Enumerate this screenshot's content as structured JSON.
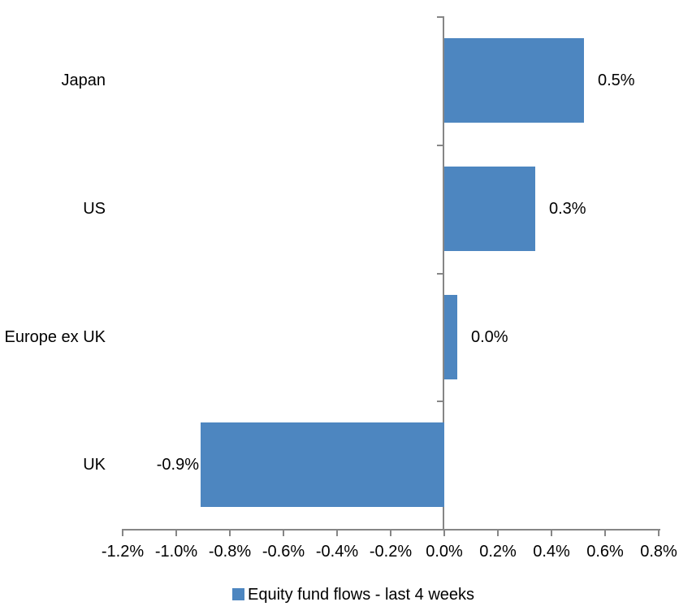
{
  "chart_data": {
    "type": "bar",
    "orientation": "horizontal",
    "title": "",
    "categories": [
      "Japan",
      "US",
      "Europe ex UK",
      "UK"
    ],
    "values": [
      0.5,
      0.3,
      0.0,
      -0.9
    ],
    "value_labels": [
      "0.5%",
      "0.3%",
      "0.0%",
      "-0.9%"
    ],
    "render_values": [
      0.52,
      0.34,
      0.048,
      -0.91
    ],
    "series": [
      {
        "name": "Equity fund flows - last 4 weeks",
        "values": [
          0.5,
          0.3,
          0.0,
          -0.9
        ]
      }
    ],
    "xlim": [
      -1.2,
      0.8
    ],
    "x_tick_values": [
      -1.2,
      -1.0,
      -0.8,
      -0.6,
      -0.4,
      -0.2,
      0.0,
      0.2,
      0.4,
      0.6,
      0.8
    ],
    "x_tick_labels": [
      "-1.2%",
      "-1.0%",
      "-0.8%",
      "-0.6%",
      "-0.4%",
      "-0.2%",
      "0.0%",
      "0.2%",
      "0.4%",
      "0.6%",
      "0.8%"
    ],
    "grid": false,
    "legend_position": "bottom",
    "bar_color": "#4D86C0",
    "axis_color": "#868686",
    "text_color": "#000000"
  },
  "legend": {
    "label": "Equity fund flows - last 4 weeks",
    "swatch_color": "#4D86C0"
  }
}
